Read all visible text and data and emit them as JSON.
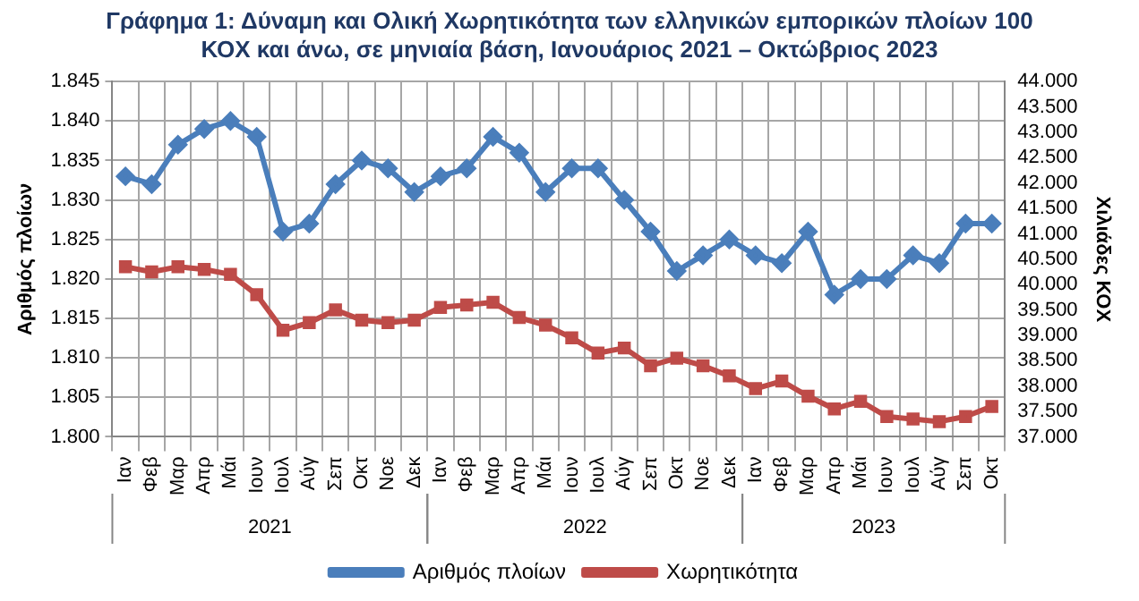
{
  "chart_data": {
    "type": "line",
    "title": "Γράφημα 1: Δύναμη και Ολική Χωρητικότητα των ελληνικών εμπορικών πλοίων 100 ΚΟΧ και άνω, σε μηνιαία βάση, Ιανουάριος 2021 – Οκτώβριος 2023",
    "ylabel": "Αριθμός πλοίων",
    "y2label": "Χιλιάδες ΚΟΧ",
    "categories": [
      "Ιαν",
      "Φεβ",
      "Μαρ",
      "Απρ",
      "Μάι",
      "Ιουν",
      "Ιουλ",
      "Αύγ",
      "Σεπ",
      "Οκτ",
      "Νοε",
      "Δεκ",
      "Ιαν",
      "Φεβ",
      "Μαρ",
      "Απρ",
      "Μάι",
      "Ιουν",
      "Ιουλ",
      "Αύγ",
      "Σεπ",
      "Οκτ",
      "Νοε",
      "Δεκ",
      "Ιαν",
      "Φεβ",
      "Μαρ",
      "Απρ",
      "Μάι",
      "Ιουν",
      "Ιουλ",
      "Αύγ",
      "Σεπ",
      "Οκτ"
    ],
    "annotations": [
      "2021",
      "2022",
      "2023"
    ],
    "series": [
      {
        "name": "Αριθμός πλοίων",
        "color": "#4a7ebb",
        "marker": "diamond",
        "values": [
          1833,
          1832,
          1837,
          1839,
          1840,
          1838,
          1826,
          1827,
          1832,
          1835,
          1834,
          1831,
          1833,
          1834,
          1838,
          1836,
          1831,
          1834,
          1834,
          1830,
          1826,
          1821,
          1823,
          1825,
          1823,
          1822,
          1826,
          1818,
          1820,
          1820,
          1823,
          1822,
          1827,
          1827
        ]
      },
      {
        "name": "Χωρητικότητα",
        "color": "#be4b48",
        "marker": "square",
        "axis": "y2",
        "values": [
          40350,
          40250,
          40350,
          40300,
          40200,
          39800,
          39100,
          39250,
          39500,
          39300,
          39250,
          39300,
          39550,
          39600,
          39650,
          39350,
          39200,
          38950,
          38650,
          38750,
          38400,
          38550,
          38400,
          38200,
          37950,
          38100,
          37800,
          37550,
          37700,
          37400,
          37350,
          37300,
          37400,
          37600
        ]
      }
    ],
    "ylim": [
      1800,
      1845
    ],
    "yticks": [
      {
        "value": 1800,
        "label": "1.800"
      },
      {
        "value": 1805,
        "label": "1.805"
      },
      {
        "value": 1810,
        "label": "1.810"
      },
      {
        "value": 1815,
        "label": "1.815"
      },
      {
        "value": 1820,
        "label": "1.820"
      },
      {
        "value": 1825,
        "label": "1.825"
      },
      {
        "value": 1830,
        "label": "1.830"
      },
      {
        "value": 1835,
        "label": "1.835"
      },
      {
        "value": 1840,
        "label": "1.840"
      },
      {
        "value": 1845,
        "label": "1.845"
      }
    ],
    "y2lim": [
      37000,
      44000
    ],
    "y2ticks": [
      {
        "value": 37000,
        "label": "37.000"
      },
      {
        "value": 37500,
        "label": "37.500"
      },
      {
        "value": 38000,
        "label": "38.000"
      },
      {
        "value": 38500,
        "label": "38.500"
      },
      {
        "value": 39000,
        "label": "39.000"
      },
      {
        "value": 39500,
        "label": "39.500"
      },
      {
        "value": 40000,
        "label": "40.000"
      },
      {
        "value": 40500,
        "label": "40.500"
      },
      {
        "value": 41000,
        "label": "41.000"
      },
      {
        "value": 41500,
        "label": "41.500"
      },
      {
        "value": 42000,
        "label": "42.000"
      },
      {
        "value": 42500,
        "label": "42.500"
      },
      {
        "value": 43000,
        "label": "43.000"
      },
      {
        "value": 43500,
        "label": "43.500"
      },
      {
        "value": 44000,
        "label": "44.000"
      }
    ],
    "grid": true,
    "legend": "bottom",
    "line_style": "solid"
  }
}
